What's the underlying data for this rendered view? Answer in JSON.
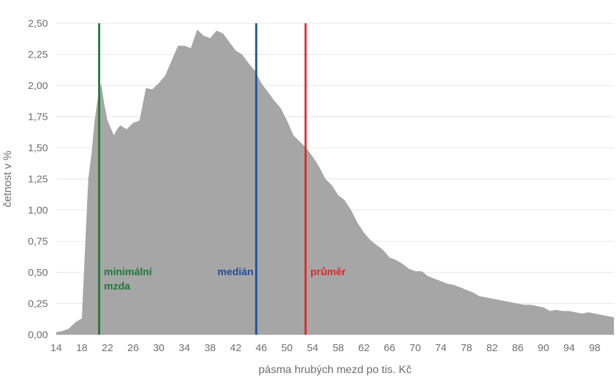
{
  "chart_data": {
    "type": "area",
    "xlabel": "pásma hrubých mezd po tis. Kč",
    "ylabel": "četnost v %",
    "xlim": [
      14,
      101
    ],
    "ylim": [
      0,
      2.5
    ],
    "grid": true,
    "x_ticks": [
      "14",
      "18",
      "22",
      "26",
      "30",
      "34",
      "38",
      "42",
      "46",
      "50",
      "54",
      "58",
      "62",
      "66",
      "70",
      "74",
      "78",
      "82",
      "86",
      "90",
      "94",
      "98"
    ],
    "y_ticks": [
      "0,00",
      "0,25",
      "0,50",
      "0,75",
      "1,00",
      "1,25",
      "1,50",
      "1,75",
      "2,00",
      "2,25",
      "2,50"
    ],
    "series": [
      {
        "x": [
          14,
          15,
          16,
          17,
          18,
          19,
          19.5,
          20,
          20.5,
          21,
          21.5,
          22,
          23,
          23.5,
          24,
          25,
          26,
          27,
          28,
          29,
          30,
          31,
          32,
          33,
          34,
          35,
          36,
          37,
          38,
          39,
          40,
          41,
          42,
          43,
          44,
          45,
          46,
          47,
          48,
          49,
          50,
          51,
          52,
          53,
          54,
          55,
          56,
          57,
          58,
          59,
          60,
          61,
          62,
          63,
          64,
          65,
          66,
          67,
          68,
          69,
          70,
          71,
          72,
          73,
          74,
          75,
          76,
          77,
          78,
          79,
          80,
          81,
          82,
          83,
          84,
          85,
          86,
          87,
          88,
          89,
          90,
          91,
          92,
          93,
          94,
          95,
          96,
          97,
          98,
          99,
          100,
          101
        ],
        "values": [
          0.02,
          0.03,
          0.05,
          0.1,
          0.13,
          1.25,
          1.45,
          1.72,
          1.9,
          2.02,
          1.85,
          1.72,
          1.6,
          1.65,
          1.68,
          1.65,
          1.7,
          1.72,
          1.98,
          1.97,
          2.02,
          2.08,
          2.2,
          2.32,
          2.32,
          2.3,
          2.45,
          2.4,
          2.38,
          2.44,
          2.42,
          2.35,
          2.28,
          2.25,
          2.18,
          2.12,
          2.02,
          1.95,
          1.88,
          1.82,
          1.72,
          1.6,
          1.55,
          1.5,
          1.43,
          1.35,
          1.25,
          1.2,
          1.12,
          1.08,
          1.0,
          0.9,
          0.82,
          0.76,
          0.72,
          0.68,
          0.62,
          0.6,
          0.57,
          0.53,
          0.51,
          0.51,
          0.47,
          0.45,
          0.43,
          0.41,
          0.4,
          0.38,
          0.36,
          0.34,
          0.31,
          0.3,
          0.29,
          0.28,
          0.27,
          0.26,
          0.25,
          0.24,
          0.24,
          0.23,
          0.22,
          0.19,
          0.2,
          0.19,
          0.19,
          0.18,
          0.17,
          0.18,
          0.17,
          0.16,
          0.15,
          0.14
        ]
      }
    ],
    "area_color": "#a6a6a6",
    "markers": [
      {
        "x": 20.7,
        "label_line1": "minimální",
        "label_line2": "mzda",
        "color": "#1e7a36"
      },
      {
        "x": 45.2,
        "label_line1": "medián",
        "label_line2": "",
        "color": "#1f4e9c"
      },
      {
        "x": 52.9,
        "label_line1": "průměr",
        "label_line2": "",
        "color": "#e0262b"
      }
    ]
  }
}
